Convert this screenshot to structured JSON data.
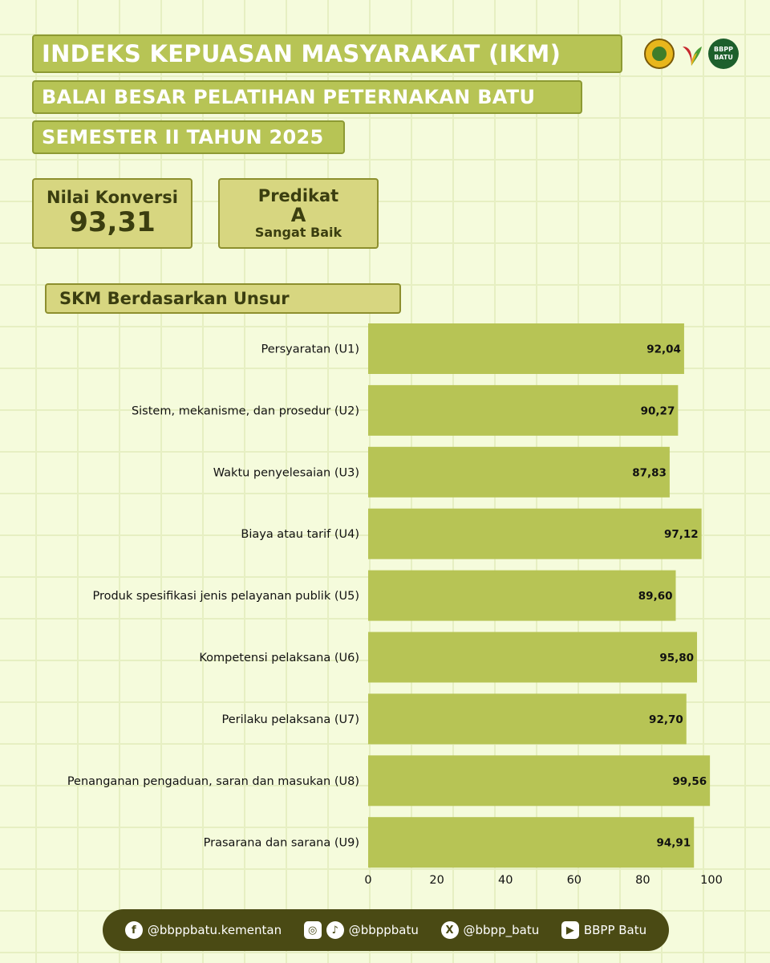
{
  "header": {
    "title_line1": "INDEKS KEPUASAN MASYARAKAT (IKM)",
    "title_line2": "BALAI BESAR PELATIHAN PETERNAKAN BATU",
    "title_line3": "SEMESTER II TAHUN 2025",
    "logo_bbpp_text": "BBPP BATU"
  },
  "stats": {
    "nilai_label": "Nilai Konversi",
    "nilai_value": "93,31",
    "predikat_label": "Predikat",
    "predikat_grade": "A",
    "predikat_desc": "Sangat Baik"
  },
  "section": {
    "title": "SKM Berdasarkan Unsur"
  },
  "colors": {
    "bar": "#b7c455",
    "accent": "#8d9a33",
    "footer": "#4a4a14"
  },
  "chart_data": {
    "type": "bar",
    "orientation": "horizontal",
    "categories": [
      "Persyaratan (U1)",
      "Sistem, mekanisme, dan prosedur (U2)",
      "Waktu penyelesaian (U3)",
      "Biaya atau tarif (U4)",
      "Produk spesifikasi jenis pelayanan publik (U5)",
      "Kompetensi pelaksana (U6)",
      "Perilaku pelaksana (U7)",
      "Penanganan pengaduan, saran dan masukan (U8)",
      "Prasarana dan sarana (U9)"
    ],
    "values": [
      92.04,
      90.27,
      87.83,
      97.12,
      89.6,
      95.8,
      92.7,
      99.56,
      94.91
    ],
    "value_labels": [
      "92,04",
      "90,27",
      "87,83",
      "97,12",
      "89,60",
      "95,80",
      "92,70",
      "99,56",
      "94,91"
    ],
    "xlim": [
      0,
      100
    ],
    "xticks": [
      0,
      20,
      40,
      60,
      80,
      100
    ],
    "title": "SKM Berdasarkan Unsur",
    "grid": false
  },
  "footer": {
    "facebook": "@bbppbatu.kementan",
    "instagram_tiktok": "@bbppbatu",
    "x": "@bbpp_batu",
    "youtube": "BBPP Batu"
  }
}
